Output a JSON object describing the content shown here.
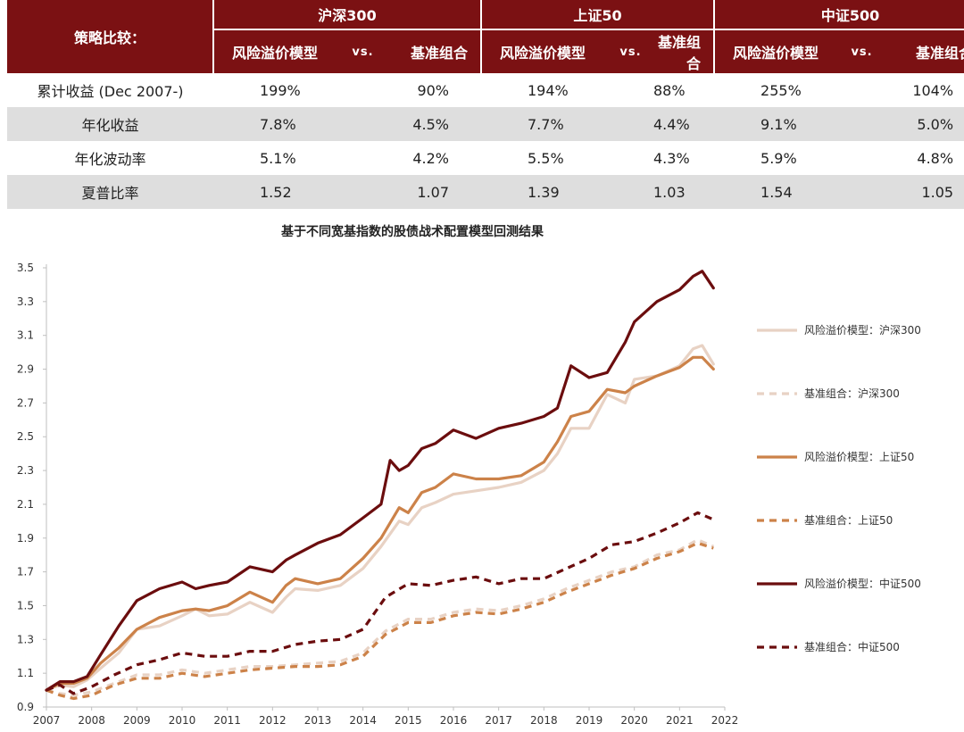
{
  "table": {
    "corner_label": "策略比较：",
    "groups": [
      {
        "name": "沪深300",
        "model_label": "风险溢价模型",
        "vs_label": "vs.",
        "base_label": "基准组合"
      },
      {
        "name": "上证50",
        "model_label": "风险溢价模型",
        "vs_label": "vs.",
        "base_label": "基准组合"
      },
      {
        "name": "中证500",
        "model_label": "风险溢价模型",
        "vs_label": "vs.",
        "base_label": "基准组合"
      }
    ],
    "rows": [
      {
        "label": "累计收益 (Dec 2007-)",
        "values": [
          "199%",
          "90%",
          "194%",
          "88%",
          "255%",
          "104%"
        ]
      },
      {
        "label": "年化收益",
        "values": [
          "7.8%",
          "4.5%",
          "7.7%",
          "4.4%",
          "9.1%",
          "5.0%"
        ]
      },
      {
        "label": "年化波动率",
        "values": [
          "5.1%",
          "4.2%",
          "5.5%",
          "4.3%",
          "5.9%",
          "4.8%"
        ]
      },
      {
        "label": "夏普比率",
        "values": [
          "1.52",
          "1.07",
          "1.39",
          "1.03",
          "1.54",
          "1.05"
        ]
      }
    ]
  },
  "chart_data": {
    "type": "line",
    "title": "基于不同宽基指数的股债战术配置模型回测结果",
    "xlabel": "",
    "ylabel": "",
    "xlim": [
      2007,
      2022
    ],
    "ylim": [
      0.9,
      3.5
    ],
    "x_ticks": [
      "2007",
      "2008",
      "2009",
      "2010",
      "2011",
      "2012",
      "2013",
      "2014",
      "2015",
      "2016",
      "2017",
      "2018",
      "2019",
      "2020",
      "2021",
      "2022"
    ],
    "y_ticks": [
      "0.9",
      "1.1",
      "1.3",
      "1.5",
      "1.7",
      "1.9",
      "2.1",
      "2.3",
      "2.5",
      "2.7",
      "2.9",
      "3.1",
      "3.3",
      "3.5"
    ],
    "legend_position": "right",
    "series": [
      {
        "name": "风险溢价模型：沪深300",
        "color": "#e8d2c4",
        "dash": "solid",
        "x": [
          2007.0,
          2007.3,
          2007.6,
          2007.9,
          2008.2,
          2008.6,
          2009.0,
          2009.5,
          2010.0,
          2010.3,
          2010.6,
          2011.0,
          2011.5,
          2012.0,
          2012.3,
          2012.5,
          2013.0,
          2013.5,
          2014.0,
          2014.4,
          2014.8,
          2015.0,
          2015.3,
          2015.6,
          2016.0,
          2016.5,
          2017.0,
          2017.5,
          2018.0,
          2018.3,
          2018.6,
          2019.0,
          2019.4,
          2019.8,
          2020.0,
          2020.5,
          2021.0,
          2021.3,
          2021.5,
          2021.75
        ],
        "values": [
          1.0,
          1.03,
          1.02,
          1.06,
          1.13,
          1.22,
          1.36,
          1.38,
          1.44,
          1.48,
          1.44,
          1.45,
          1.52,
          1.46,
          1.55,
          1.6,
          1.59,
          1.62,
          1.72,
          1.85,
          2.0,
          1.98,
          2.08,
          2.11,
          2.16,
          2.18,
          2.2,
          2.23,
          2.3,
          2.4,
          2.55,
          2.55,
          2.75,
          2.7,
          2.84,
          2.86,
          2.92,
          3.02,
          3.04,
          2.93
        ]
      },
      {
        "name": "基准组合：沪深300",
        "color": "#e8d2c4",
        "dash": "dashed",
        "x": [
          2007.0,
          2007.3,
          2007.6,
          2008.0,
          2008.5,
          2009.0,
          2009.5,
          2010.0,
          2010.5,
          2011.0,
          2011.5,
          2012.0,
          2012.5,
          2013.0,
          2013.5,
          2014.0,
          2014.5,
          2015.0,
          2015.5,
          2016.0,
          2016.5,
          2017.0,
          2017.5,
          2018.0,
          2018.5,
          2019.0,
          2019.5,
          2020.0,
          2020.5,
          2021.0,
          2021.4,
          2021.75
        ],
        "values": [
          1.0,
          0.98,
          0.97,
          0.99,
          1.04,
          1.09,
          1.09,
          1.12,
          1.1,
          1.12,
          1.14,
          1.14,
          1.15,
          1.16,
          1.17,
          1.22,
          1.35,
          1.42,
          1.42,
          1.46,
          1.48,
          1.47,
          1.5,
          1.54,
          1.6,
          1.65,
          1.7,
          1.73,
          1.8,
          1.83,
          1.89,
          1.85
        ]
      },
      {
        "name": "风险溢价模型：上证50",
        "color": "#cc8249",
        "dash": "solid",
        "x": [
          2007.0,
          2007.3,
          2007.6,
          2007.9,
          2008.2,
          2008.6,
          2009.0,
          2009.5,
          2010.0,
          2010.3,
          2010.6,
          2011.0,
          2011.5,
          2012.0,
          2012.3,
          2012.5,
          2013.0,
          2013.5,
          2014.0,
          2014.4,
          2014.8,
          2015.0,
          2015.3,
          2015.6,
          2016.0,
          2016.5,
          2017.0,
          2017.5,
          2018.0,
          2018.3,
          2018.6,
          2019.0,
          2019.4,
          2019.8,
          2020.0,
          2020.5,
          2021.0,
          2021.3,
          2021.5,
          2021.75
        ],
        "values": [
          1.0,
          1.04,
          1.04,
          1.07,
          1.16,
          1.25,
          1.36,
          1.43,
          1.47,
          1.48,
          1.47,
          1.5,
          1.58,
          1.52,
          1.62,
          1.66,
          1.63,
          1.66,
          1.78,
          1.9,
          2.08,
          2.05,
          2.17,
          2.2,
          2.28,
          2.25,
          2.25,
          2.27,
          2.35,
          2.47,
          2.62,
          2.65,
          2.78,
          2.76,
          2.8,
          2.86,
          2.91,
          2.97,
          2.97,
          2.9
        ]
      },
      {
        "name": "基准组合：上证50",
        "color": "#cc8249",
        "dash": "dashed",
        "x": [
          2007.0,
          2007.3,
          2007.6,
          2008.0,
          2008.5,
          2009.0,
          2009.5,
          2010.0,
          2010.5,
          2011.0,
          2011.5,
          2012.0,
          2012.5,
          2013.0,
          2013.5,
          2014.0,
          2014.5,
          2015.0,
          2015.5,
          2016.0,
          2016.5,
          2017.0,
          2017.5,
          2018.0,
          2018.5,
          2019.0,
          2019.5,
          2020.0,
          2020.5,
          2021.0,
          2021.4,
          2021.75
        ],
        "values": [
          1.0,
          0.97,
          0.95,
          0.97,
          1.03,
          1.07,
          1.07,
          1.1,
          1.08,
          1.1,
          1.12,
          1.13,
          1.14,
          1.14,
          1.15,
          1.2,
          1.33,
          1.4,
          1.4,
          1.44,
          1.46,
          1.45,
          1.48,
          1.52,
          1.58,
          1.63,
          1.68,
          1.72,
          1.78,
          1.82,
          1.87,
          1.84
        ]
      },
      {
        "name": "风险溢价模型：中证500",
        "color": "#6b0d0e",
        "dash": "solid",
        "x": [
          2007.0,
          2007.3,
          2007.6,
          2007.9,
          2008.2,
          2008.6,
          2009.0,
          2009.5,
          2010.0,
          2010.3,
          2010.6,
          2011.0,
          2011.5,
          2012.0,
          2012.3,
          2012.5,
          2013.0,
          2013.5,
          2014.0,
          2014.4,
          2014.6,
          2014.8,
          2015.0,
          2015.3,
          2015.6,
          2016.0,
          2016.5,
          2017.0,
          2017.5,
          2018.0,
          2018.3,
          2018.6,
          2019.0,
          2019.4,
          2019.8,
          2020.0,
          2020.5,
          2021.0,
          2021.3,
          2021.5,
          2021.75
        ],
        "values": [
          1.0,
          1.05,
          1.05,
          1.08,
          1.21,
          1.38,
          1.53,
          1.6,
          1.64,
          1.6,
          1.62,
          1.64,
          1.73,
          1.7,
          1.77,
          1.8,
          1.87,
          1.92,
          2.02,
          2.1,
          2.36,
          2.3,
          2.33,
          2.43,
          2.46,
          2.54,
          2.49,
          2.55,
          2.58,
          2.62,
          2.67,
          2.92,
          2.85,
          2.88,
          3.06,
          3.18,
          3.3,
          3.37,
          3.45,
          3.48,
          3.38
        ]
      },
      {
        "name": "基准组合：中证500",
        "color": "#6b0d0e",
        "dash": "dashed",
        "x": [
          2007.0,
          2007.3,
          2007.6,
          2008.0,
          2008.5,
          2009.0,
          2009.5,
          2010.0,
          2010.5,
          2011.0,
          2011.5,
          2012.0,
          2012.5,
          2013.0,
          2013.5,
          2014.0,
          2014.5,
          2015.0,
          2015.5,
          2016.0,
          2016.5,
          2017.0,
          2017.5,
          2018.0,
          2018.5,
          2019.0,
          2019.5,
          2020.0,
          2020.5,
          2021.0,
          2021.4,
          2021.75
        ],
        "values": [
          1.0,
          1.03,
          0.98,
          1.02,
          1.09,
          1.15,
          1.18,
          1.22,
          1.2,
          1.2,
          1.23,
          1.23,
          1.27,
          1.29,
          1.3,
          1.36,
          1.55,
          1.63,
          1.62,
          1.65,
          1.67,
          1.63,
          1.66,
          1.66,
          1.72,
          1.78,
          1.86,
          1.88,
          1.93,
          1.99,
          2.05,
          2.01
        ]
      }
    ]
  }
}
